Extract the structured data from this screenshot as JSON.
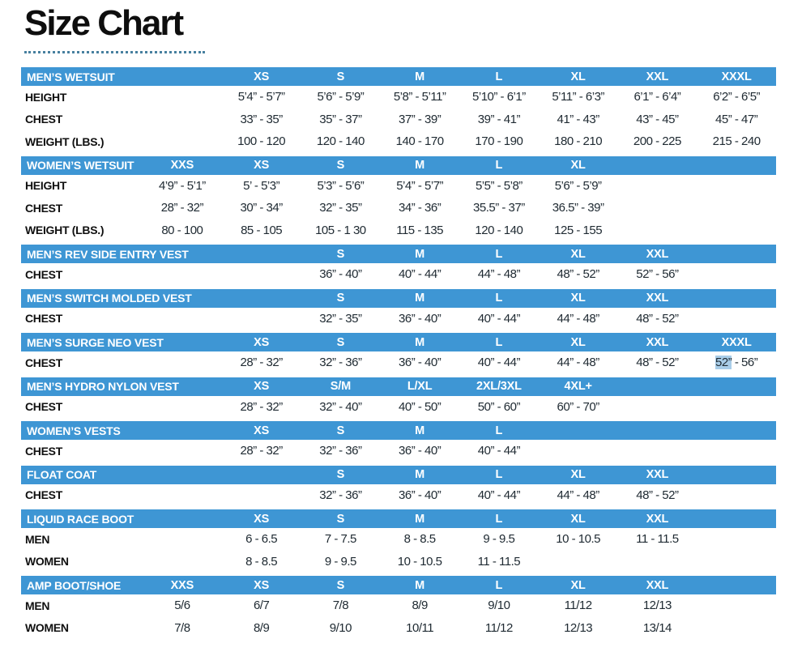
{
  "page": {
    "title": "Size Chart"
  },
  "colors": {
    "header_bar": "#3e96d4",
    "header_text": "#ffffff",
    "value_text": "#202b33",
    "selection_highlight": "#a9cde8",
    "dotted_line": "#47809f"
  },
  "tables": [
    {
      "title": "MEN’S WETSUIT",
      "header": [
        "",
        "XS",
        "S",
        "M",
        "L",
        "XL",
        "XXL",
        "XXXL"
      ],
      "rows": [
        {
          "label": "HEIGHT",
          "cells": [
            "",
            "5’4” - 5’7”",
            "5’6” - 5’9”",
            "5’8” - 5’11”",
            "5’10” - 6’1”",
            "5’11” - 6’3”",
            "6’1” - 6’4”",
            "6’2” - 6’5”"
          ]
        },
        {
          "label": "CHEST",
          "cells": [
            "",
            "33” - 35”",
            "35” - 37”",
            "37” - 39”",
            "39” - 41”",
            "41” - 43”",
            "43” - 45”",
            "45” - 47”"
          ]
        },
        {
          "label": "WEIGHT (LBS.)",
          "cells": [
            "",
            "100 - 120",
            "120 - 140",
            "140 - 170",
            "170 - 190",
            "180 - 210",
            "200 - 225",
            "215 - 240"
          ]
        }
      ]
    },
    {
      "title": "WOMEN’S WETSUIT",
      "header": [
        "XXS",
        "XS",
        "S",
        "M",
        "L",
        "XL",
        "",
        ""
      ],
      "rows": [
        {
          "label": "HEIGHT",
          "cells": [
            "4’9” - 5’1”",
            "5’ - 5’3”",
            "5’3” - 5’6”",
            "5’4” - 5’7”",
            "5’5” - 5’8”",
            "5’6” - 5’9”",
            "",
            ""
          ]
        },
        {
          "label": "CHEST",
          "cells": [
            "28” - 32”",
            "30” - 34”",
            "32” - 35”",
            "34” - 36”",
            "35.5” - 37”",
            "36.5” - 39”",
            "",
            ""
          ]
        },
        {
          "label": "WEIGHT (LBS.)",
          "cells": [
            "80 - 100",
            "85 - 105",
            "105 - 1 30",
            "115 - 135",
            "120 - 140",
            "125 - 155",
            "",
            ""
          ]
        }
      ]
    },
    {
      "title": "MEN’S REV SIDE ENTRY VEST",
      "header": [
        "",
        "",
        "S",
        "M",
        "L",
        "XL",
        "XXL",
        ""
      ],
      "rows": [
        {
          "label": "CHEST",
          "cells": [
            "",
            "",
            "36” - 40”",
            "40” - 44”",
            "44” - 48”",
            "48” - 52”",
            "52” - 56”",
            ""
          ]
        }
      ]
    },
    {
      "title": "MEN’S SWITCH MOLDED VEST",
      "header": [
        "",
        "",
        "S",
        "M",
        "L",
        "XL",
        "XXL",
        ""
      ],
      "rows": [
        {
          "label": "CHEST",
          "cells": [
            "",
            "",
            "32” - 35”",
            "36” - 40”",
            "40” - 44”",
            "44” - 48”",
            "48” - 52”",
            ""
          ]
        }
      ]
    },
    {
      "title": "MEN’S SURGE NEO VEST",
      "header": [
        "",
        "XS",
        "S",
        "M",
        "L",
        "XL",
        "XXL",
        "XXXL"
      ],
      "rows": [
        {
          "label": "CHEST",
          "cells": [
            "",
            "28” - 32”",
            "32” - 36”",
            "36” - 40”",
            "40” - 44”",
            "44” - 48”",
            "48” - 52”",
            {
              "parts": [
                {
                  "text": "52”",
                  "highlight": true
                },
                {
                  "text": " - 56”",
                  "highlight": false
                }
              ]
            }
          ]
        }
      ]
    },
    {
      "title": "MEN’S HYDRO NYLON VEST",
      "header": [
        "",
        "XS",
        "S/M",
        "L/XL",
        "2XL/3XL",
        "4XL+",
        "",
        ""
      ],
      "rows": [
        {
          "label": "CHEST",
          "cells": [
            "",
            "28” - 32”",
            "32” - 40”",
            "40” - 50”",
            "50” - 60”",
            "60” - 70”",
            "",
            ""
          ]
        }
      ]
    },
    {
      "title": "WOMEN’S VESTS",
      "header": [
        "",
        "XS",
        "S",
        "M",
        "L",
        "",
        "",
        ""
      ],
      "rows": [
        {
          "label": "CHEST",
          "cells": [
            "",
            "28” - 32”",
            "32” - 36”",
            "36” - 40”",
            "40” - 44”",
            "",
            "",
            ""
          ]
        }
      ]
    },
    {
      "title": "FLOAT COAT",
      "header": [
        "",
        "",
        "S",
        "M",
        "L",
        "XL",
        "XXL",
        ""
      ],
      "rows": [
        {
          "label": "CHEST",
          "cells": [
            "",
            "",
            "32” - 36”",
            "36” - 40”",
            "40” - 44”",
            "44” - 48”",
            "48” - 52”",
            ""
          ]
        }
      ]
    },
    {
      "title": "LIQUID RACE BOOT",
      "header": [
        "",
        "XS",
        "S",
        "M",
        "L",
        "XL",
        "XXL",
        ""
      ],
      "rows": [
        {
          "label": "MEN",
          "cells": [
            "",
            "6 - 6.5",
            "7 - 7.5",
            "8 - 8.5",
            "9 - 9.5",
            "10 - 10.5",
            "11 - 11.5",
            ""
          ]
        },
        {
          "label": "WOMEN",
          "cells": [
            "",
            "8 - 8.5",
            "9 - 9.5",
            "10 - 10.5",
            "11 - 11.5",
            "",
            "",
            ""
          ]
        }
      ]
    },
    {
      "title": "AMP BOOT/SHOE",
      "header": [
        "XXS",
        "XS",
        "S",
        "M",
        "L",
        "XL",
        "XXL",
        ""
      ],
      "rows": [
        {
          "label": "MEN",
          "cells": [
            "5/6",
            "6/7",
            "7/8",
            "8/9",
            "9/10",
            "11/12",
            "12/13",
            ""
          ]
        },
        {
          "label": "WOMEN",
          "cells": [
            "7/8",
            "8/9",
            "9/10",
            "10/11",
            "11/12",
            "12/13",
            "13/14",
            ""
          ]
        }
      ]
    }
  ]
}
